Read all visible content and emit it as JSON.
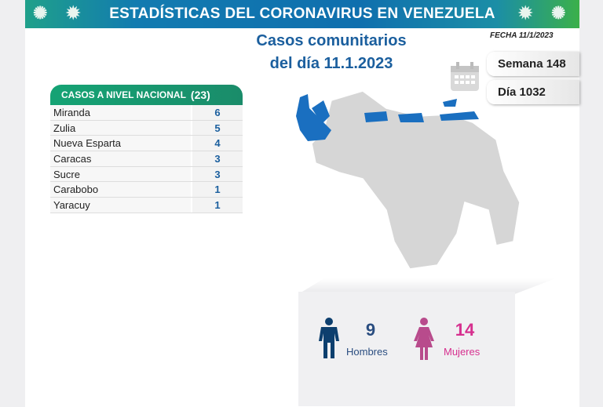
{
  "header": {
    "title": "ESTADÍSTICAS DEL CORONAVIRUS EN VENEZUELA"
  },
  "subtitle": {
    "line1": "Casos comunitarios",
    "line2": "del día 11.1.2023"
  },
  "fecha": "FECHA 11/1/2023",
  "semana": "Semana 148",
  "dia": "Día 1032",
  "table": {
    "title": "CASOS A NIVEL NACIONAL",
    "total": "(23)",
    "rows": [
      {
        "state": "Miranda",
        "cases": "6"
      },
      {
        "state": "Zulia",
        "cases": "5"
      },
      {
        "state": "Nueva Esparta",
        "cases": "4"
      },
      {
        "state": "Caracas",
        "cases": "3"
      },
      {
        "state": "Sucre",
        "cases": "3"
      },
      {
        "state": "Carabobo",
        "cases": "1"
      },
      {
        "state": "Yaracuy",
        "cases": "1"
      }
    ]
  },
  "gender": {
    "men": {
      "count": "9",
      "label": "Hombres",
      "color": "#0d3f6e"
    },
    "women": {
      "count": "14",
      "label": "Mujeres",
      "color": "#d6308f"
    }
  },
  "map": {
    "highlight_color": "#1a6fc0",
    "base_color": "#d6d6d6",
    "highlighted_states": [
      "Zulia",
      "Falcón (coast)",
      "Carabobo",
      "Yaracuy",
      "Caracas",
      "Miranda",
      "Nueva Esparta",
      "Sucre"
    ]
  }
}
